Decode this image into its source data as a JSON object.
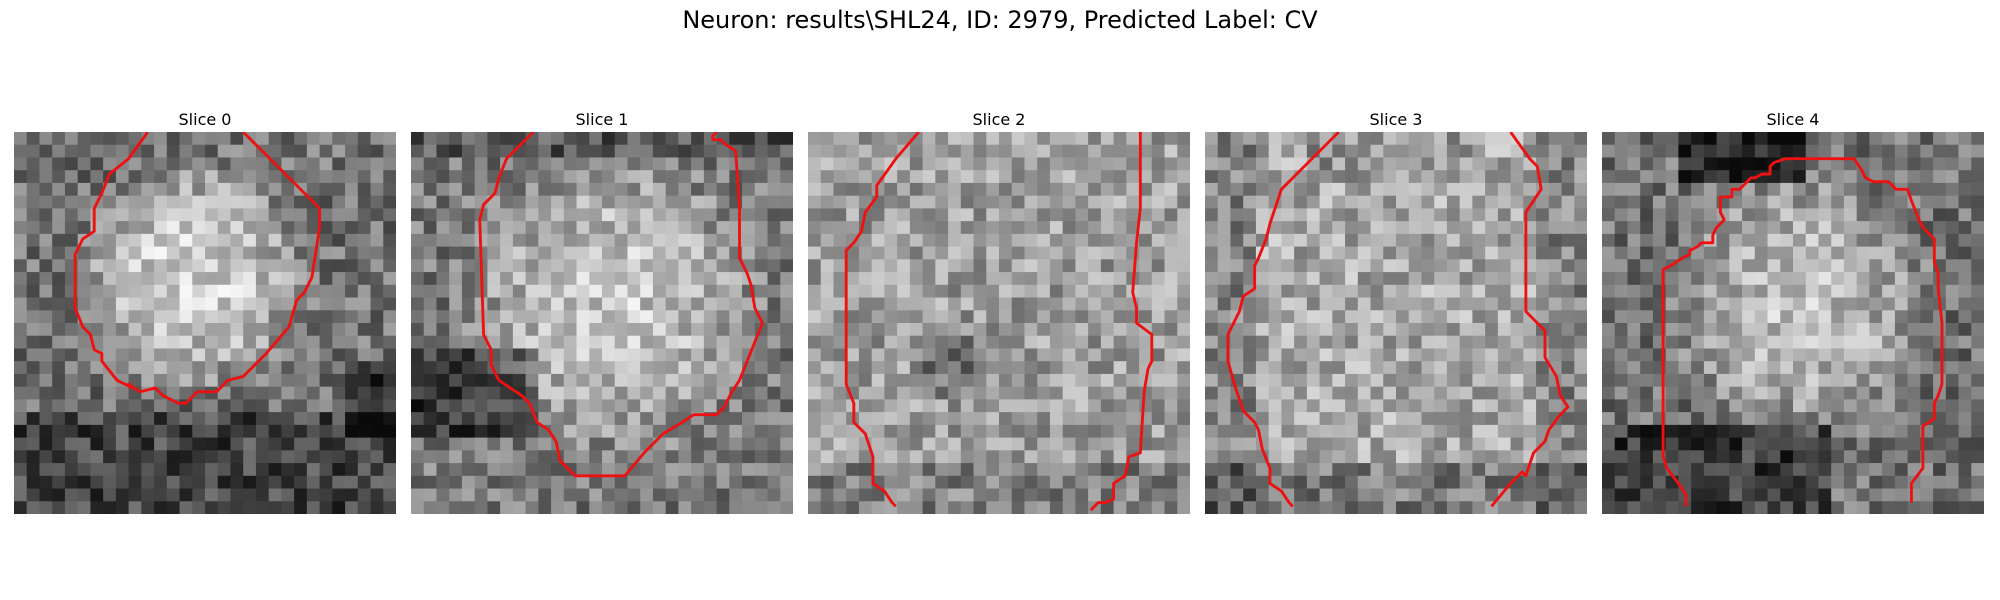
{
  "title": "Neuron: results\\SHL24, ID: 2979, Predicted Label: CV",
  "colors": {
    "contour": "#ee1111",
    "background": "#ffffff"
  },
  "panels": [
    {
      "label": "Slice 0",
      "image_description": "grayscale noisy microscopy crop showing a bright roughly circular cell body on the upper-left",
      "contour": [
        [
          [
            0.35,
            0.0
          ],
          [
            0.3,
            0.07
          ],
          [
            0.25,
            0.11
          ],
          [
            0.23,
            0.16
          ],
          [
            0.21,
            0.2
          ],
          [
            0.21,
            0.26
          ],
          [
            0.18,
            0.28
          ],
          [
            0.16,
            0.32
          ],
          [
            0.16,
            0.46
          ],
          [
            0.18,
            0.51
          ],
          [
            0.2,
            0.53
          ],
          [
            0.21,
            0.57
          ],
          [
            0.23,
            0.58
          ],
          [
            0.23,
            0.6
          ],
          [
            0.27,
            0.65
          ],
          [
            0.31,
            0.67
          ],
          [
            0.3,
            0.66
          ],
          [
            0.33,
            0.68
          ],
          [
            0.37,
            0.67
          ],
          [
            0.39,
            0.69
          ],
          [
            0.43,
            0.71
          ],
          [
            0.45,
            0.71
          ],
          [
            0.48,
            0.68
          ],
          [
            0.53,
            0.68
          ],
          [
            0.56,
            0.65
          ],
          [
            0.6,
            0.64
          ],
          [
            0.66,
            0.58
          ],
          [
            0.72,
            0.51
          ],
          [
            0.74,
            0.44
          ],
          [
            0.76,
            0.42
          ],
          [
            0.78,
            0.38
          ],
          [
            0.8,
            0.25
          ],
          [
            0.8,
            0.2
          ],
          [
            0.73,
            0.13
          ],
          [
            0.66,
            0.06
          ],
          [
            0.6,
            0.0
          ]
        ]
      ]
    },
    {
      "label": "Slice 1",
      "image_description": "grayscale noisy microscopy crop with a large bright cell body outlined by the contour",
      "contour": [
        [
          [
            0.32,
            0.0
          ],
          [
            0.25,
            0.07
          ],
          [
            0.23,
            0.12
          ],
          [
            0.22,
            0.16
          ],
          [
            0.19,
            0.19
          ],
          [
            0.18,
            0.23
          ],
          [
            0.19,
            0.53
          ],
          [
            0.21,
            0.57
          ],
          [
            0.21,
            0.61
          ],
          [
            0.23,
            0.65
          ],
          [
            0.26,
            0.67
          ],
          [
            0.29,
            0.69
          ],
          [
            0.31,
            0.71
          ],
          [
            0.33,
            0.76
          ],
          [
            0.36,
            0.78
          ],
          [
            0.38,
            0.81
          ],
          [
            0.39,
            0.86
          ],
          [
            0.41,
            0.88
          ],
          [
            0.43,
            0.9
          ],
          [
            0.56,
            0.9
          ],
          [
            0.61,
            0.84
          ],
          [
            0.66,
            0.79
          ],
          [
            0.71,
            0.76
          ],
          [
            0.74,
            0.74
          ],
          [
            0.8,
            0.74
          ],
          [
            0.82,
            0.72
          ],
          [
            0.84,
            0.68
          ],
          [
            0.86,
            0.65
          ],
          [
            0.88,
            0.6
          ],
          [
            0.92,
            0.5
          ],
          [
            0.9,
            0.46
          ],
          [
            0.89,
            0.4
          ],
          [
            0.88,
            0.37
          ],
          [
            0.86,
            0.33
          ],
          [
            0.86,
            0.2
          ],
          [
            0.85,
            0.05
          ],
          [
            0.82,
            0.03
          ],
          [
            0.81,
            0.02
          ],
          [
            0.79,
            0.02
          ],
          [
            0.79,
            0.01
          ],
          [
            0.8,
            0.0
          ]
        ]
      ]
    },
    {
      "label": "Slice 2",
      "image_description": "grayscale noisy microscopy crop with a bright textured region and a dark spot near the lower middle",
      "contour": [
        [
          [
            0.29,
            0.0
          ],
          [
            0.23,
            0.07
          ],
          [
            0.18,
            0.14
          ],
          [
            0.18,
            0.17
          ],
          [
            0.15,
            0.21
          ],
          [
            0.14,
            0.26
          ],
          [
            0.12,
            0.29
          ],
          [
            0.1,
            0.31
          ],
          [
            0.1,
            0.66
          ],
          [
            0.12,
            0.71
          ],
          [
            0.12,
            0.76
          ],
          [
            0.15,
            0.79
          ],
          [
            0.17,
            0.85
          ],
          [
            0.17,
            0.92
          ],
          [
            0.2,
            0.94
          ],
          [
            0.22,
            0.97
          ],
          [
            0.23,
            0.98
          ]
        ],
        [
          [
            0.87,
            0.0
          ],
          [
            0.87,
            0.2
          ],
          [
            0.86,
            0.29
          ],
          [
            0.85,
            0.42
          ],
          [
            0.86,
            0.46
          ],
          [
            0.86,
            0.5
          ],
          [
            0.9,
            0.53
          ],
          [
            0.9,
            0.6
          ],
          [
            0.89,
            0.62
          ],
          [
            0.88,
            0.68
          ],
          [
            0.87,
            0.84
          ],
          [
            0.84,
            0.85
          ],
          [
            0.83,
            0.9
          ],
          [
            0.8,
            0.92
          ],
          [
            0.8,
            0.96
          ],
          [
            0.78,
            0.97
          ],
          [
            0.76,
            0.97
          ],
          [
            0.74,
            0.99
          ]
        ]
      ]
    },
    {
      "label": "Slice 3",
      "image_description": "grayscale noisy microscopy crop with a bright band between two contour lines",
      "contour": [
        [
          [
            0.35,
            0.0
          ],
          [
            0.28,
            0.07
          ],
          [
            0.2,
            0.15
          ],
          [
            0.17,
            0.24
          ],
          [
            0.16,
            0.28
          ],
          [
            0.14,
            0.33
          ],
          [
            0.13,
            0.35
          ],
          [
            0.13,
            0.41
          ],
          [
            0.1,
            0.43
          ],
          [
            0.09,
            0.47
          ],
          [
            0.06,
            0.53
          ],
          [
            0.06,
            0.6
          ],
          [
            0.08,
            0.67
          ],
          [
            0.1,
            0.73
          ],
          [
            0.13,
            0.76
          ],
          [
            0.14,
            0.78
          ],
          [
            0.15,
            0.83
          ],
          [
            0.17,
            0.88
          ],
          [
            0.17,
            0.92
          ],
          [
            0.2,
            0.94
          ],
          [
            0.22,
            0.97
          ],
          [
            0.23,
            0.98
          ]
        ],
        [
          [
            0.8,
            0.0
          ],
          [
            0.85,
            0.07
          ],
          [
            0.87,
            0.09
          ],
          [
            0.88,
            0.15
          ],
          [
            0.84,
            0.21
          ],
          [
            0.84,
            0.47
          ],
          [
            0.89,
            0.52
          ],
          [
            0.89,
            0.59
          ],
          [
            0.92,
            0.64
          ],
          [
            0.93,
            0.69
          ],
          [
            0.95,
            0.72
          ],
          [
            0.93,
            0.74
          ],
          [
            0.9,
            0.78
          ],
          [
            0.89,
            0.81
          ],
          [
            0.86,
            0.84
          ],
          [
            0.85,
            0.87
          ],
          [
            0.84,
            0.9
          ],
          [
            0.83,
            0.89
          ],
          [
            0.82,
            0.9
          ],
          [
            0.8,
            0.92
          ],
          [
            0.75,
            0.98
          ]
        ]
      ]
    },
    {
      "label": "Slice 4",
      "image_description": "grayscale noisy microscopy crop with a bright cell body below a dark upper region",
      "contour": [
        [
          [
            0.22,
            0.98
          ],
          [
            0.22,
            0.95
          ],
          [
            0.2,
            0.92
          ],
          [
            0.17,
            0.88
          ],
          [
            0.16,
            0.85
          ],
          [
            0.16,
            0.36
          ],
          [
            0.18,
            0.35
          ],
          [
            0.21,
            0.33
          ],
          [
            0.23,
            0.32
          ],
          [
            0.23,
            0.31
          ],
          [
            0.25,
            0.3
          ],
          [
            0.26,
            0.29
          ],
          [
            0.29,
            0.29
          ],
          [
            0.29,
            0.27
          ],
          [
            0.3,
            0.25
          ],
          [
            0.32,
            0.23
          ],
          [
            0.31,
            0.21
          ],
          [
            0.31,
            0.17
          ],
          [
            0.34,
            0.17
          ],
          [
            0.34,
            0.15
          ],
          [
            0.36,
            0.15
          ],
          [
            0.39,
            0.12
          ],
          [
            0.4,
            0.12
          ],
          [
            0.42,
            0.11
          ],
          [
            0.44,
            0.11
          ],
          [
            0.44,
            0.09
          ],
          [
            0.45,
            0.08
          ],
          [
            0.48,
            0.07
          ],
          [
            0.53,
            0.07
          ],
          [
            0.58,
            0.07
          ],
          [
            0.62,
            0.07
          ],
          [
            0.66,
            0.07
          ],
          [
            0.68,
            0.1
          ],
          [
            0.69,
            0.12
          ],
          [
            0.71,
            0.13
          ],
          [
            0.75,
            0.13
          ],
          [
            0.77,
            0.15
          ],
          [
            0.8,
            0.15
          ],
          [
            0.81,
            0.18
          ],
          [
            0.83,
            0.23
          ],
          [
            0.84,
            0.25
          ],
          [
            0.87,
            0.28
          ],
          [
            0.87,
            0.34
          ],
          [
            0.88,
            0.37
          ],
          [
            0.88,
            0.41
          ],
          [
            0.89,
            0.5
          ],
          [
            0.89,
            0.66
          ],
          [
            0.88,
            0.69
          ],
          [
            0.87,
            0.71
          ],
          [
            0.87,
            0.75
          ],
          [
            0.84,
            0.77
          ],
          [
            0.84,
            0.88
          ],
          [
            0.81,
            0.92
          ],
          [
            0.81,
            0.97
          ]
        ]
      ]
    }
  ]
}
